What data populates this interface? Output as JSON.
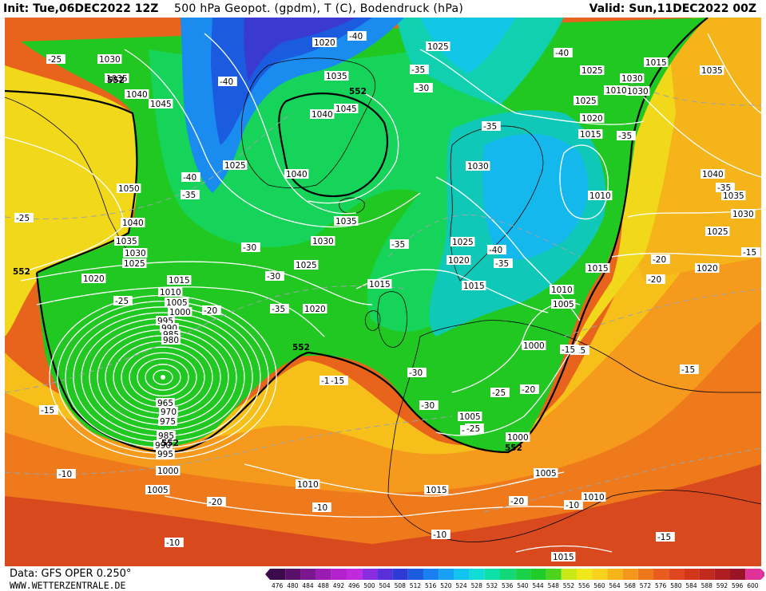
{
  "header": {
    "init": "Init: Tue,06DEC2022 12Z",
    "title": "500 hPa Geopot. (gpdm), T (C), Bodendruck (hPa)",
    "valid": "Valid: Sun,11DEC2022 00Z"
  },
  "footer": {
    "source": "Data: GFS OPER 0.250°",
    "site": "WWW.WETTERZENTRALE.DE"
  },
  "scale": {
    "ticks": [
      "476",
      "480",
      "484",
      "488",
      "492",
      "496",
      "500",
      "504",
      "508",
      "512",
      "516",
      "520",
      "524",
      "528",
      "532",
      "536",
      "540",
      "544",
      "548",
      "552",
      "556",
      "560",
      "564",
      "568",
      "572",
      "576",
      "580",
      "584",
      "588",
      "592",
      "596",
      "600"
    ],
    "colors": [
      "#3a0a4a",
      "#5a0f6a",
      "#7b1590",
      "#9a1bb0",
      "#b322cc",
      "#c02adc",
      "#8a2be2",
      "#5a2ed8",
      "#2f3ad6",
      "#1a5be0",
      "#1a7ff0",
      "#18a0f5",
      "#12c4f0",
      "#10dcd8",
      "#0fe0a8",
      "#12d878",
      "#1ad24a",
      "#20cc2a",
      "#4cd41c",
      "#c8e818",
      "#f0e81a",
      "#f6d21a",
      "#f7b418",
      "#f5961a",
      "#f0781c",
      "#ea5c1e",
      "#e0461e",
      "#d4361c",
      "#c22a1e",
      "#b01e22",
      "#9c1226",
      "#e0309a"
    ]
  },
  "map": {
    "pressure_labels": [
      "1025",
      "1020",
      "1030",
      "1035",
      "1040",
      "1045",
      "1035",
      "1040",
      "1045",
      "1050",
      "1040",
      "1035",
      "1030",
      "1025",
      "1020",
      "1015",
      "1010",
      "1005",
      "1000",
      "995",
      "990",
      "985",
      "980",
      "965",
      "970",
      "975",
      "985",
      "990",
      "995",
      "1000",
      "1005",
      "1010",
      "1015",
      "1040",
      "1035",
      "1025",
      "1030",
      "1025",
      "1020",
      "1025",
      "1030",
      "1020",
      "1015",
      "1015",
      "1015",
      "1010",
      "1005",
      "1000",
      "1005",
      "1000",
      "1005",
      "1010",
      "1015",
      "1030",
      "1025",
      "1020",
      "1015",
      "1010",
      "1040",
      "1035",
      "1030",
      "1025",
      "1020",
      "1015",
      "1010",
      "1025",
      "1030",
      "1035",
      "1020",
      "1025"
    ],
    "temp_labels": [
      "-40",
      "-40",
      "-35",
      "-25",
      "-25",
      "-35",
      "-40",
      "-35",
      "-40",
      "-40",
      "-35",
      "-30",
      "-30",
      "-35",
      "-30",
      "-25",
      "-25",
      "-20",
      "-25",
      "-20",
      "-35",
      "-30",
      "-25",
      "-20",
      "-20",
      "-15",
      "-15",
      "-15",
      "-15",
      "-10",
      "-10",
      "-10",
      "-15",
      "-15",
      "-20",
      "-10",
      "-10",
      "-20",
      "-15",
      "-15",
      "-15",
      "-35",
      "-35",
      "-30"
    ],
    "contour_labels": [
      "552",
      "552",
      "552",
      "552",
      "552",
      "552"
    ]
  }
}
